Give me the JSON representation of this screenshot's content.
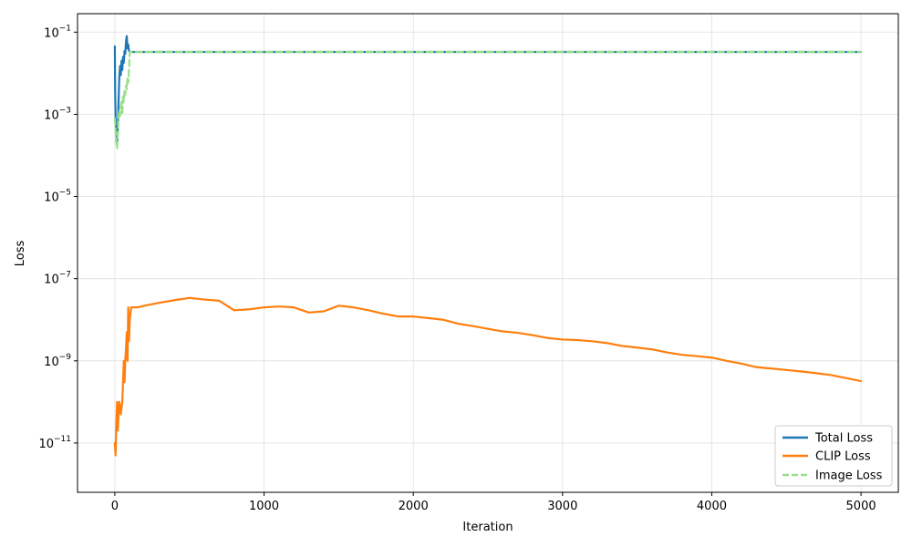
{
  "chart_data": {
    "type": "line",
    "title": "",
    "xlabel": "Iteration",
    "ylabel": "Loss",
    "xlim": [
      -250,
      5250
    ],
    "ylim_log10": [
      -12.2,
      -0.55
    ],
    "y_scale": "log",
    "grid": true,
    "legend_placement": "lower-right",
    "x_ticks": [
      0,
      1000,
      2000,
      3000,
      4000,
      5000
    ],
    "x_tick_labels": [
      "0",
      "1000",
      "2000",
      "3000",
      "4000",
      "5000"
    ],
    "y_ticks_log10": [
      -11,
      -9,
      -7,
      -5,
      -3,
      -1
    ],
    "y_tick_bases": [
      "10",
      "10",
      "10",
      "10",
      "10",
      "10"
    ],
    "y_tick_exponents": [
      "−11",
      "−9",
      "−7",
      "−5",
      "−3",
      "−1"
    ],
    "series": [
      {
        "name": "Total Loss",
        "color": "#1f77b4",
        "style": "solid",
        "x": [
          0,
          2,
          5,
          8,
          12,
          16,
          20,
          25,
          30,
          35,
          40,
          45,
          50,
          55,
          60,
          65,
          70,
          75,
          80,
          85,
          90,
          95,
          100,
          110,
          150,
          500,
          1000,
          2000,
          3000,
          4000,
          5000
        ],
        "y": [
          0.045,
          0.004,
          0.0008,
          0.0005,
          0.0003,
          0.0002,
          0.0004,
          0.002,
          0.008,
          0.015,
          0.009,
          0.02,
          0.012,
          0.025,
          0.018,
          0.035,
          0.03,
          0.06,
          0.08,
          0.04,
          0.05,
          0.035,
          0.033,
          0.033,
          0.033,
          0.033,
          0.033,
          0.033,
          0.033,
          0.033,
          0.033
        ]
      },
      {
        "name": "CLIP Loss",
        "color": "#ff7f0e",
        "style": "solid",
        "x": [
          0,
          5,
          10,
          15,
          20,
          25,
          30,
          40,
          50,
          55,
          60,
          65,
          70,
          75,
          80,
          85,
          90,
          95,
          100,
          110,
          150,
          200,
          300,
          400,
          500,
          600,
          700,
          800,
          900,
          1000,
          1100,
          1200,
          1300,
          1400,
          1500,
          1600,
          1700,
          1800,
          1900,
          2000,
          2100,
          2200,
          2300,
          2400,
          2500,
          2600,
          2700,
          2800,
          2900,
          3000,
          3100,
          3200,
          3300,
          3400,
          3500,
          3600,
          3700,
          3800,
          3900,
          4000,
          4100,
          4200,
          4300,
          4400,
          4500,
          4600,
          4700,
          4800,
          4900,
          5000
        ],
        "y": [
          1e-11,
          5e-12,
          3e-11,
          1e-10,
          2e-11,
          5e-11,
          1e-10,
          5e-11,
          1e-10,
          3e-10,
          1e-09,
          3e-10,
          1e-09,
          2e-09,
          5e-09,
          1e-09,
          2e-08,
          3e-09,
          1e-08,
          2e-08,
          2e-08,
          2.2e-08,
          2.6e-08,
          3e-08,
          3.4e-08,
          3.1e-08,
          2.9e-08,
          1.7e-08,
          1.8e-08,
          2e-08,
          2.1e-08,
          2e-08,
          1.5e-08,
          1.6e-08,
          2.2e-08,
          2e-08,
          1.7e-08,
          1.4e-08,
          1.2e-08,
          1.2e-08,
          1.1e-08,
          1e-08,
          8e-09,
          7e-09,
          6e-09,
          5.2e-09,
          4.8e-09,
          4.2e-09,
          3.6e-09,
          3.3e-09,
          3.2e-09,
          3e-09,
          2.7e-09,
          2.3e-09,
          2.1e-09,
          1.9e-09,
          1.6e-09,
          1.4e-09,
          1.3e-09,
          1.2e-09,
          1e-09,
          8.5e-10,
          7e-10,
          6.5e-10,
          6e-10,
          5.5e-10,
          5e-10,
          4.5e-10,
          3.8e-10,
          3.2e-10
        ]
      },
      {
        "name": "Image Loss",
        "color": "#98df8a",
        "style": "dashed",
        "x": [
          0,
          5,
          10,
          15,
          20,
          25,
          30,
          35,
          40,
          45,
          50,
          55,
          60,
          65,
          70,
          75,
          80,
          85,
          90,
          95,
          100,
          110,
          150,
          500,
          1000,
          2000,
          3000,
          4000,
          5000
        ],
        "y": [
          0.0008,
          0.0004,
          0.0002,
          0.00015,
          0.0003,
          0.0008,
          0.0012,
          0.0009,
          0.0015,
          0.002,
          0.001,
          0.003,
          0.002,
          0.004,
          0.003,
          0.005,
          0.004,
          0.008,
          0.006,
          0.012,
          0.033,
          0.033,
          0.033,
          0.033,
          0.033,
          0.033,
          0.033,
          0.033,
          0.033
        ]
      }
    ]
  }
}
